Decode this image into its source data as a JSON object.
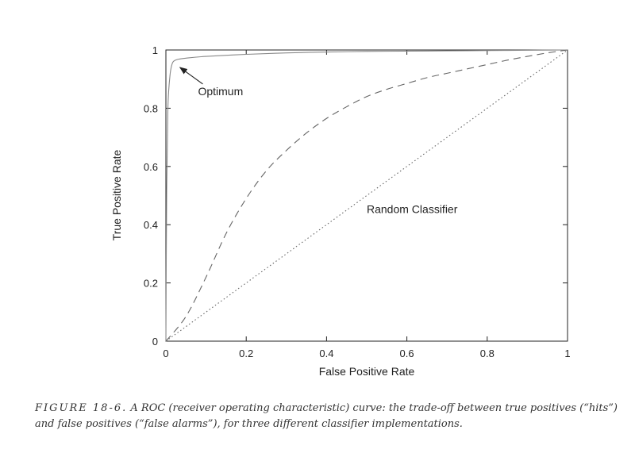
{
  "chart_data": {
    "type": "line",
    "title": "",
    "xlabel": "False Positive Rate",
    "ylabel": "True Positive Rate",
    "xlim": [
      0,
      1
    ],
    "ylim": [
      0,
      1
    ],
    "x_ticks": [
      0,
      0.2,
      0.4,
      0.6,
      0.8,
      1
    ],
    "x_tick_labels": [
      "0",
      "0.2",
      "0.4",
      "0.6",
      "0.8",
      "1"
    ],
    "y_ticks": [
      0,
      0.2,
      0.4,
      0.6,
      0.8,
      1
    ],
    "y_tick_labels": [
      "0",
      "0.2",
      "0.4",
      "0.6",
      "0.8",
      "1"
    ],
    "grid": false,
    "legend": "none",
    "series": [
      {
        "style": "solid",
        "color": "#888888",
        "x": [
          0,
          0.002,
          0.005,
          0.01,
          0.015,
          0.02,
          0.03,
          0.05,
          0.1,
          0.2,
          0.3,
          0.4,
          0.5,
          0.6,
          0.7,
          0.8,
          0.9,
          1.0
        ],
        "y": [
          0,
          0.52,
          0.8,
          0.91,
          0.95,
          0.962,
          0.968,
          0.972,
          0.978,
          0.985,
          0.99,
          0.993,
          0.995,
          0.996,
          0.997,
          0.998,
          0.999,
          1.0
        ]
      },
      {
        "style": "dashed",
        "color": "#666666",
        "x": [
          0,
          0.05,
          0.1,
          0.15,
          0.2,
          0.25,
          0.3,
          0.35,
          0.4,
          0.45,
          0.5,
          0.55,
          0.6,
          0.65,
          0.7,
          0.75,
          0.8,
          0.85,
          0.9,
          0.95,
          1.0
        ],
        "y": [
          0,
          0.085,
          0.22,
          0.37,
          0.49,
          0.585,
          0.655,
          0.715,
          0.765,
          0.805,
          0.84,
          0.865,
          0.885,
          0.905,
          0.92,
          0.935,
          0.95,
          0.965,
          0.978,
          0.99,
          1.0
        ]
      },
      {
        "style": "dotted",
        "color": "#666666",
        "x": [
          0,
          1
        ],
        "y": [
          0,
          1
        ]
      }
    ],
    "annotations": [
      {
        "text": "Optimum",
        "x": 0.08,
        "y": 0.845,
        "arrow_to": {
          "x": 0.035,
          "y": 0.94
        }
      },
      {
        "text": "Random Classifier",
        "x": 0.5,
        "y": 0.44
      }
    ]
  },
  "caption": {
    "label": "FIGURE 18-6.",
    "text": " A ROC (receiver operating characteristic) curve: the trade-off between true positives (“hits”) and false positives (“false alarms”), for three different classifier implementations."
  }
}
